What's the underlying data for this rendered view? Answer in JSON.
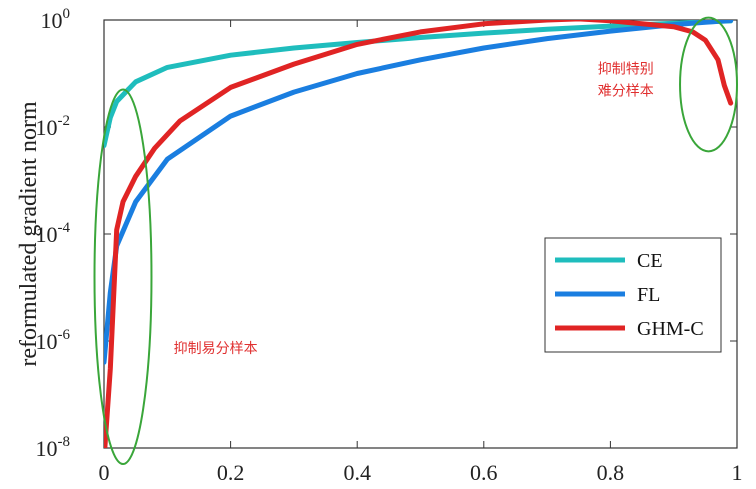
{
  "chart_data": {
    "type": "line",
    "title": "",
    "xlabel": "",
    "ylabel": "reformulated gradient norm",
    "xlim": [
      0,
      1
    ],
    "ylim": [
      1e-08,
      1
    ],
    "yscale": "log",
    "grid": false,
    "legend_position": "right",
    "x_ticks": [
      {
        "value": 0,
        "label": "0"
      },
      {
        "value": 0.2,
        "label": "0.2"
      },
      {
        "value": 0.4,
        "label": "0.4"
      },
      {
        "value": 0.6,
        "label": "0.6"
      },
      {
        "value": 0.8,
        "label": "0.8"
      },
      {
        "value": 1,
        "label": "1"
      }
    ],
    "y_ticks": [
      {
        "value": 1e-08,
        "base": "10",
        "exp": "-8"
      },
      {
        "value": 1e-06,
        "base": "10",
        "exp": "-6"
      },
      {
        "value": 0.0001,
        "base": "10",
        "exp": "-4"
      },
      {
        "value": 0.01,
        "base": "10",
        "exp": "-2"
      },
      {
        "value": 1,
        "base": "10",
        "exp": "0"
      }
    ],
    "series": [
      {
        "name": "CE",
        "color": "#1fbdbd",
        "x": [
          0.0,
          0.01,
          0.02,
          0.05,
          0.1,
          0.2,
          0.3,
          0.4,
          0.5,
          0.6,
          0.7,
          0.8,
          0.9,
          0.95,
          0.99
        ],
        "y": [
          0.0045,
          0.015,
          0.03,
          0.07,
          0.13,
          0.22,
          0.3,
          0.38,
          0.47,
          0.57,
          0.67,
          0.77,
          0.87,
          0.92,
          0.96
        ]
      },
      {
        "name": "FL",
        "color": "#1a7ee0",
        "x": [
          0.0,
          0.01,
          0.02,
          0.05,
          0.1,
          0.2,
          0.3,
          0.4,
          0.5,
          0.6,
          0.7,
          0.8,
          0.9,
          0.95,
          0.99
        ],
        "y": [
          4e-07,
          8e-06,
          6e-05,
          0.0004,
          0.0025,
          0.016,
          0.045,
          0.1,
          0.18,
          0.3,
          0.45,
          0.62,
          0.82,
          0.91,
          0.98
        ]
      },
      {
        "name": "GHM-C",
        "color": "#e02424",
        "x": [
          0.0,
          0.01,
          0.02,
          0.03,
          0.05,
          0.08,
          0.12,
          0.2,
          0.3,
          0.4,
          0.5,
          0.6,
          0.7,
          0.75,
          0.8,
          0.85,
          0.9,
          0.93,
          0.95,
          0.97,
          0.98,
          0.99
        ],
        "y": [
          6e-09,
          3e-07,
          0.00012,
          0.0004,
          0.0012,
          0.004,
          0.013,
          0.055,
          0.15,
          0.35,
          0.6,
          0.85,
          1.0,
          1.05,
          0.97,
          0.85,
          0.75,
          0.6,
          0.42,
          0.18,
          0.06,
          0.028
        ]
      }
    ],
    "legend": [
      "CE",
      "FL",
      "GHM-C"
    ],
    "annotations": [
      {
        "text_lines": [
          "抑制易分样本"
        ],
        "color": "#e03030",
        "x": 0.11,
        "y": 6e-07
      },
      {
        "text_lines": [
          "抑制特别",
          "难分样本"
        ],
        "color": "#e03030",
        "x": 0.78,
        "y": 0.1
      },
      {
        "shape": "ellipse",
        "color": "#3aa63a",
        "cx": 0.03,
        "cy": 1e-05,
        "rx": 0.045,
        "ry_decades_up": 3.7,
        "ry_decades_down": 3.3
      },
      {
        "shape": "ellipse",
        "color": "#3aa63a",
        "cx": 0.955,
        "cy": 0.07,
        "rx": 0.045,
        "ry_decades_up": 1.2,
        "ry_decades_down": 1.3
      }
    ]
  }
}
